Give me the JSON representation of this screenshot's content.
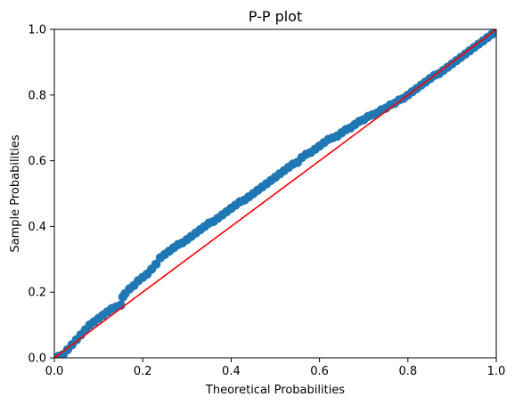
{
  "chart_data": {
    "type": "scatter",
    "title": "P-P plot",
    "xlabel": "Theoretical Probabilities",
    "ylabel": "Sample Probabilities",
    "xlim": [
      0,
      1
    ],
    "ylim": [
      0,
      1
    ],
    "xticks": [
      "0.0",
      "0.2",
      "0.4",
      "0.6",
      "0.8",
      "1.0"
    ],
    "yticks": [
      "0.0",
      "0.2",
      "0.4",
      "0.6",
      "0.8",
      "1.0"
    ],
    "grid": false,
    "legend": "none",
    "colors": {
      "points": "#1f77b4",
      "reference_line": "#ff0000",
      "axes": "#000000"
    },
    "reference_line": {
      "x": [
        0,
        1
      ],
      "y": [
        0,
        1
      ]
    },
    "series": [
      {
        "x": [
          0.0,
          0.01,
          0.02,
          0.03,
          0.04,
          0.05,
          0.06,
          0.07,
          0.08,
          0.09,
          0.1,
          0.11,
          0.12,
          0.13,
          0.14,
          0.15,
          0.155,
          0.16,
          0.17,
          0.18,
          0.19,
          0.2,
          0.21,
          0.22,
          0.23,
          0.24,
          0.25,
          0.26,
          0.27,
          0.28,
          0.29,
          0.3,
          0.31,
          0.32,
          0.33,
          0.34,
          0.35,
          0.36,
          0.37,
          0.38,
          0.39,
          0.4,
          0.41,
          0.42,
          0.43,
          0.44,
          0.45,
          0.46,
          0.47,
          0.48,
          0.49,
          0.5,
          0.51,
          0.52,
          0.53,
          0.54,
          0.55,
          0.56,
          0.57,
          0.58,
          0.59,
          0.6,
          0.61,
          0.62,
          0.63,
          0.64,
          0.65,
          0.66,
          0.67,
          0.68,
          0.69,
          0.7,
          0.71,
          0.72,
          0.73,
          0.74,
          0.75,
          0.76,
          0.77,
          0.78,
          0.79,
          0.8,
          0.81,
          0.82,
          0.83,
          0.84,
          0.85,
          0.86,
          0.87,
          0.88,
          0.89,
          0.9,
          0.91,
          0.92,
          0.93,
          0.94,
          0.95,
          0.96,
          0.97,
          0.98,
          0.99,
          1.0
        ],
        "y": [
          0.0,
          0.005,
          0.01,
          0.025,
          0.04,
          0.055,
          0.07,
          0.085,
          0.1,
          0.11,
          0.12,
          0.13,
          0.14,
          0.15,
          0.155,
          0.16,
          0.185,
          0.195,
          0.21,
          0.22,
          0.235,
          0.245,
          0.255,
          0.27,
          0.285,
          0.305,
          0.315,
          0.325,
          0.335,
          0.345,
          0.35,
          0.36,
          0.37,
          0.38,
          0.39,
          0.4,
          0.41,
          0.415,
          0.425,
          0.435,
          0.445,
          0.455,
          0.465,
          0.475,
          0.48,
          0.49,
          0.5,
          0.51,
          0.52,
          0.53,
          0.54,
          0.55,
          0.56,
          0.57,
          0.58,
          0.59,
          0.595,
          0.61,
          0.62,
          0.625,
          0.635,
          0.645,
          0.655,
          0.665,
          0.67,
          0.675,
          0.685,
          0.695,
          0.7,
          0.71,
          0.72,
          0.725,
          0.735,
          0.74,
          0.745,
          0.755,
          0.76,
          0.77,
          0.775,
          0.785,
          0.79,
          0.8,
          0.81,
          0.82,
          0.83,
          0.84,
          0.85,
          0.86,
          0.865,
          0.875,
          0.885,
          0.895,
          0.905,
          0.915,
          0.925,
          0.935,
          0.945,
          0.955,
          0.965,
          0.975,
          0.985,
          0.995
        ]
      }
    ]
  }
}
